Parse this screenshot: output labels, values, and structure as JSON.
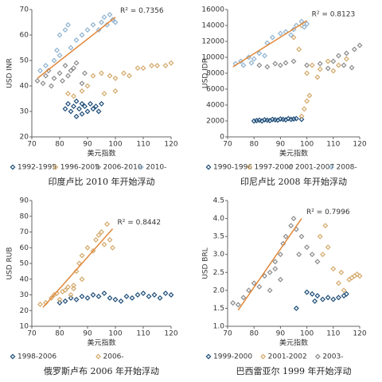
{
  "chart_data": [
    {
      "type": "scatter",
      "caption": "印度卢比 2010 年开始浮动",
      "xlabel": "美元指数",
      "ylabel": "USD INR",
      "xlim": [
        70,
        120
      ],
      "xticks": [
        70,
        80,
        90,
        100,
        110,
        120
      ],
      "ylim": [
        20,
        70
      ],
      "yticks": [
        20,
        30,
        40,
        50,
        60,
        70
      ],
      "trendline": {
        "color": "#e0883a",
        "label": "R² = 0.7356",
        "x": [
          72,
          100
        ],
        "y": [
          43,
          67
        ]
      },
      "series": [
        {
          "name": "1992-1995",
          "color": "#1f4e79",
          "x": [
            82,
            83,
            84,
            85,
            86,
            87,
            88,
            89,
            90,
            91,
            92,
            93,
            94,
            95,
            86,
            88
          ],
          "y": [
            31,
            33,
            30,
            32,
            34,
            31,
            33,
            32,
            30,
            33,
            31,
            32,
            30,
            33,
            28,
            29
          ]
        },
        {
          "name": "1996-2005",
          "color": "#d4a96a",
          "x": [
            83,
            85,
            88,
            90,
            92,
            95,
            98,
            100,
            103,
            105,
            108,
            110,
            113,
            115,
            118,
            120,
            96,
            100
          ],
          "y": [
            37,
            36,
            38,
            40,
            44,
            45,
            44,
            43,
            45,
            44,
            47,
            47,
            48,
            48,
            48,
            49,
            37,
            38
          ]
        },
        {
          "name": "2006-2010",
          "color": "#8c8c8c",
          "x": [
            72,
            74,
            75,
            76,
            77,
            78,
            80,
            81,
            82,
            83,
            84,
            85,
            86,
            88,
            89
          ],
          "y": [
            42,
            41,
            44,
            46,
            40,
            43,
            45,
            42,
            48,
            44,
            46,
            47,
            49,
            41,
            45
          ]
        },
        {
          "name": "2010-",
          "color": "#8fb3d1",
          "x": [
            73,
            75,
            78,
            80,
            80,
            82,
            83,
            84,
            86,
            88,
            90,
            92,
            94,
            95,
            96,
            97,
            98,
            99,
            100,
            79
          ],
          "y": [
            46,
            48,
            50,
            52,
            60,
            62,
            64,
            55,
            58,
            60,
            62,
            64,
            62,
            65,
            67,
            64,
            68,
            66,
            65,
            54
          ]
        }
      ]
    },
    {
      "type": "scatter",
      "caption": "印尼卢比 2008 年开始浮动",
      "xlabel": "美元指数",
      "ylabel": "USD IDR",
      "xlim": [
        70,
        120
      ],
      "xticks": [
        70,
        80,
        90,
        100,
        110,
        120
      ],
      "ylim": [
        0,
        16000
      ],
      "yticks": [
        0,
        2000,
        4000,
        6000,
        8000,
        10000,
        12000,
        14000,
        16000
      ],
      "trendline": {
        "color": "#e0883a",
        "label": "R² = 0.8123",
        "x": [
          72,
          100
        ],
        "y": [
          8800,
          14600
        ]
      },
      "series": [
        {
          "name": "1990-1996",
          "color": "#1f4e79",
          "x": [
            80,
            81,
            82,
            83,
            84,
            85,
            86,
            87,
            88,
            89,
            90,
            91,
            92,
            93,
            94,
            95,
            96,
            98
          ],
          "y": [
            2000,
            2050,
            2100,
            2000,
            2150,
            2100,
            2050,
            2200,
            2150,
            2100,
            2250,
            2200,
            2150,
            2300,
            2200,
            2250,
            2300,
            2200
          ]
        },
        {
          "name": "1997-2000",
          "color": "#d4a96a",
          "x": [
            98,
            99,
            100,
            101,
            100,
            102,
            105,
            108,
            110,
            112,
            115,
            104,
            97,
            95,
            98
          ],
          "y": [
            2600,
            3500,
            4500,
            5200,
            8000,
            9000,
            8500,
            9500,
            8300,
            9000,
            9800,
            7500,
            11000,
            12500,
            14000
          ]
        },
        {
          "name": "2001-2007",
          "color": "#8c8c8c",
          "x": [
            82,
            85,
            88,
            90,
            92,
            95,
            100,
            105,
            108,
            110,
            112,
            115,
            118,
            120,
            114,
            117
          ],
          "y": [
            9000,
            8800,
            9200,
            9000,
            9300,
            9500,
            9000,
            9200,
            8600,
            9500,
            10200,
            10500,
            11000,
            11500,
            9000,
            8700
          ]
        },
        {
          "name": "2008-",
          "color": "#8fb3d1",
          "x": [
            73,
            75,
            78,
            80,
            82,
            84,
            85,
            87,
            90,
            92,
            94,
            95,
            96,
            98,
            99,
            100,
            79,
            76
          ],
          "y": [
            9200,
            9500,
            10000,
            9800,
            10500,
            10200,
            11800,
            12500,
            13000,
            13200,
            12800,
            13500,
            14000,
            14500,
            13800,
            14200,
            9300,
            9000
          ]
        }
      ]
    },
    {
      "type": "scatter",
      "caption": "俄罗斯卢布 2006 年开始浮动",
      "xlabel": "美元指数",
      "ylabel": "USD RUB",
      "xlim": [
        70,
        120
      ],
      "xticks": [
        70,
        80,
        90,
        100,
        110,
        120
      ],
      "ylim": [
        10,
        90
      ],
      "yticks": [
        10,
        20,
        30,
        40,
        50,
        60,
        70,
        80,
        90
      ],
      "trendline": {
        "color": "#e0883a",
        "label": "R² = 0.8442",
        "x": [
          74,
          99
        ],
        "y": [
          22,
          72
        ]
      },
      "series": [
        {
          "name": "1998-2006",
          "color": "#1f4e79",
          "x": [
            80,
            82,
            84,
            86,
            88,
            90,
            92,
            94,
            96,
            98,
            100,
            102,
            104,
            106,
            108,
            110,
            112,
            114,
            116,
            118,
            120
          ],
          "y": [
            25,
            26,
            28,
            27,
            29,
            28,
            30,
            29,
            31,
            28,
            27,
            26,
            29,
            28,
            30,
            31,
            29,
            30,
            28,
            31,
            30
          ]
        },
        {
          "name": "2006-",
          "color": "#d4a96a",
          "x": [
            73,
            75,
            77,
            78,
            79,
            80,
            82,
            83,
            84,
            85,
            86,
            87,
            88,
            90,
            92,
            93,
            94,
            95,
            96,
            97,
            98,
            99,
            88,
            85,
            81
          ],
          "y": [
            24,
            25,
            28,
            30,
            31,
            27,
            33,
            35,
            30,
            36,
            45,
            50,
            55,
            60,
            58,
            65,
            68,
            70,
            62,
            75,
            65,
            60,
            40,
            34,
            32
          ]
        }
      ]
    },
    {
      "type": "scatter",
      "caption": "巴西雷亚尔 1999 年开始浮动",
      "xlabel": "美元指数",
      "ylabel": "USD BRL",
      "xlim": [
        70,
        120
      ],
      "xticks": [
        70,
        80,
        90,
        100,
        110,
        120
      ],
      "ylim": [
        1,
        4.5
      ],
      "yticks": [
        {
          "value": 1,
          "label": "1.0"
        },
        1.5,
        {
          "value": 2,
          "label": "2.0"
        },
        2.5,
        {
          "value": 3,
          "label": "3.0"
        },
        3.5,
        {
          "value": 4,
          "label": "4.0"
        },
        4.5
      ],
      "trendline": {
        "color": "#e0883a",
        "label": "R² = 0.7996",
        "x": [
          74,
          98
        ],
        "y": [
          1.45,
          4.0
        ]
      },
      "series": [
        {
          "name": "1999-2000",
          "color": "#1f4e79",
          "x": [
            96,
            100,
            102,
            104,
            106,
            108,
            110,
            112,
            114,
            115,
            103
          ],
          "y": [
            1.5,
            1.95,
            1.9,
            1.85,
            1.75,
            1.8,
            1.75,
            1.8,
            1.85,
            1.9,
            1.7
          ]
        },
        {
          "name": "2001-2002",
          "color": "#d4a96a",
          "x": [
            105,
            107,
            108,
            110,
            112,
            114,
            116,
            117,
            118,
            119,
            120,
            113,
            106
          ],
          "y": [
            3.5,
            3.8,
            3.2,
            2.6,
            2.2,
            2.0,
            2.3,
            2.35,
            2.4,
            2.45,
            2.4,
            2.5,
            3.0
          ]
        },
        {
          "name": "2003-",
          "color": "#8c8c8c",
          "x": [
            72,
            74,
            76,
            78,
            80,
            82,
            84,
            86,
            88,
            90,
            91,
            92,
            94,
            95,
            96,
            98,
            100,
            102,
            104,
            86,
            90,
            97,
            88
          ],
          "y": [
            1.65,
            1.6,
            1.8,
            2.0,
            2.2,
            2.1,
            2.4,
            2.5,
            2.8,
            3.0,
            3.3,
            3.5,
            3.8,
            4.0,
            3.7,
            3.5,
            3.2,
            3.0,
            2.8,
            2.0,
            2.3,
            3.0,
            2.6
          ]
        }
      ]
    }
  ]
}
